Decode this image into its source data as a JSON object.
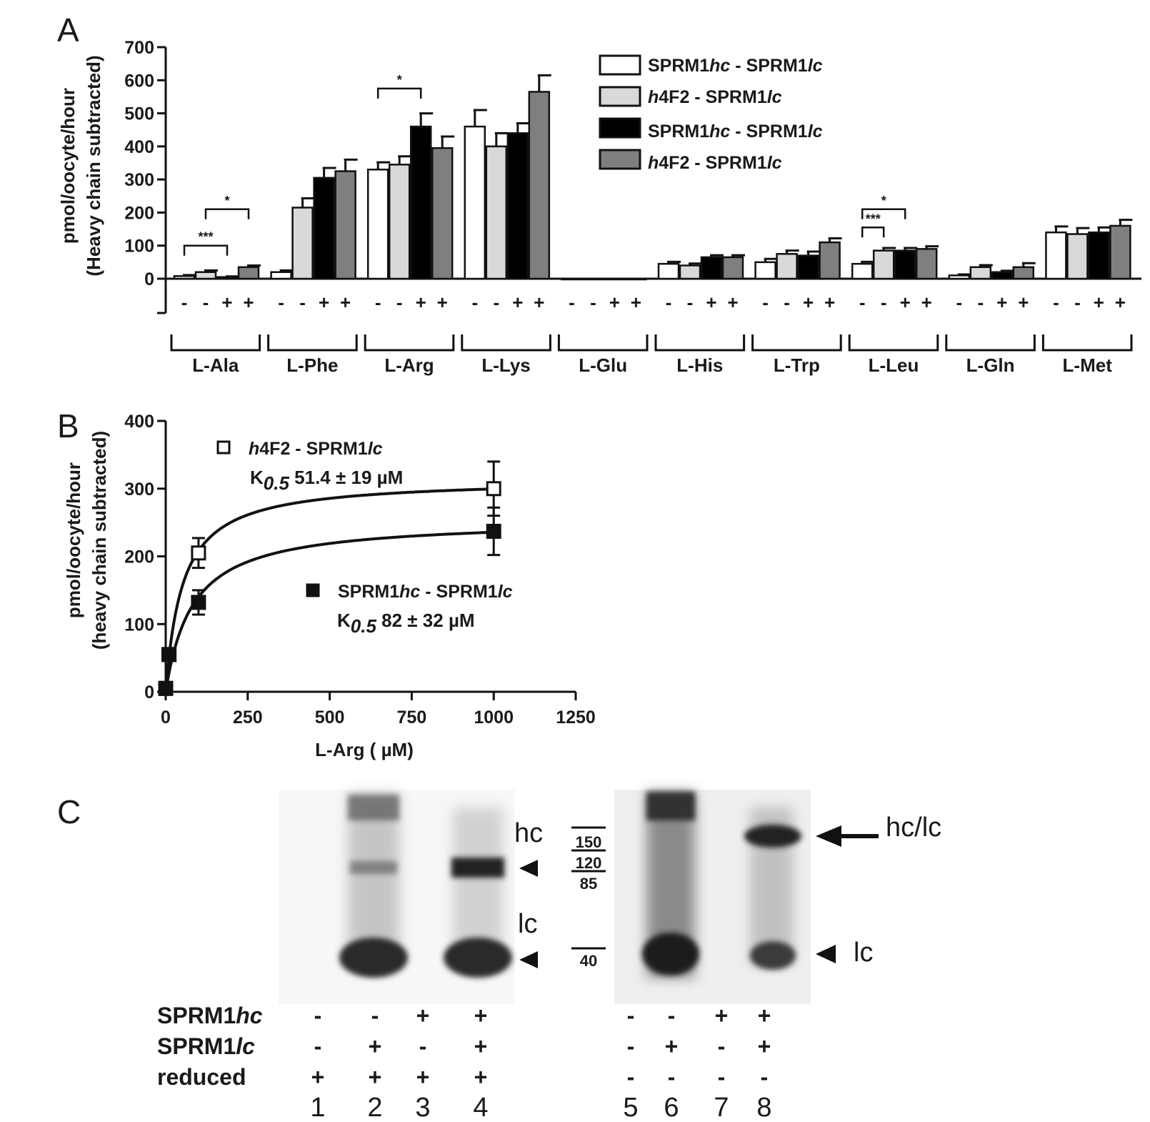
{
  "panels": {
    "a": "A",
    "b": "B",
    "c": "C"
  },
  "chart_data": [
    {
      "type": "bar",
      "panel": "A",
      "ylabel": "pmol/oocyte/hour",
      "ylabel2": "(Heavy chain subtracted)",
      "ylim": [
        0,
        700
      ],
      "yticks": [
        0,
        100,
        200,
        300,
        400,
        500,
        600,
        700
      ],
      "categories": [
        "L-Ala",
        "L-Phe",
        "L-Arg",
        "L-Lys",
        "L-Glu",
        "L-His",
        "L-Trp",
        "L-Leu",
        "L-Gln",
        "L-Met"
      ],
      "condition_labels": [
        "-",
        "-",
        "+",
        "+"
      ],
      "legend_placement": "top-right",
      "series": [
        {
          "name": "SPRM1hc - SPRM1lc",
          "legend_parts": [
            "SPRM1",
            "hc",
            " - SPRM1",
            "lc"
          ],
          "color": "#ffffff",
          "values": [
            8,
            20,
            330,
            460,
            0,
            45,
            50,
            45,
            10,
            140
          ],
          "errors": [
            3,
            5,
            22,
            50,
            0,
            6,
            10,
            6,
            3,
            18
          ]
        },
        {
          "name": "h4F2 - SPRM1lc",
          "legend_parts": [
            "h",
            "4F2 - SPRM1",
            "lc"
          ],
          "color": "#d9d9d9",
          "values": [
            20,
            215,
            345,
            400,
            0,
            40,
            75,
            85,
            35,
            135
          ],
          "errors": [
            5,
            28,
            25,
            40,
            0,
            6,
            10,
            8,
            6,
            18
          ]
        },
        {
          "name": "SPRM1hc - SPRM1lc",
          "legend_parts": [
            "SPRM1",
            "hc",
            " - SPRM1",
            "lc"
          ],
          "color": "#000000",
          "values": [
            5,
            305,
            460,
            440,
            0,
            65,
            70,
            85,
            20,
            140
          ],
          "errors": [
            2,
            30,
            40,
            30,
            0,
            6,
            12,
            8,
            4,
            15
          ]
        },
        {
          "name": "h4F2 - SPRM1lc",
          "legend_parts": [
            "h",
            "4F2 - SPRM1",
            "lc"
          ],
          "color": "#7f7f7f",
          "values": [
            35,
            325,
            395,
            565,
            0,
            65,
            110,
            90,
            35,
            160
          ],
          "errors": [
            5,
            35,
            35,
            50,
            0,
            6,
            12,
            8,
            12,
            18
          ]
        }
      ],
      "significance": [
        {
          "category": 0,
          "from": 0,
          "to": 2,
          "label": "***",
          "y": 100
        },
        {
          "category": 0,
          "from": 1,
          "to": 3,
          "label": "*",
          "y": 210
        },
        {
          "category": 2,
          "from": 0,
          "to": 2,
          "label": "*",
          "y": 575
        },
        {
          "category": 7,
          "from": 0,
          "to": 1,
          "label": "***",
          "y": 155
        },
        {
          "category": 7,
          "from": 0,
          "to": 2,
          "label": "*",
          "y": 210
        }
      ]
    },
    {
      "type": "scatter",
      "panel": "B",
      "xlabel": "L-Arg ( µM)",
      "ylabel": "pmol/oocyte/hour",
      "ylabel2": "(heavy chain subtracted)",
      "xlim": [
        0,
        1250
      ],
      "ylim": [
        0,
        400
      ],
      "xticks": [
        0,
        250,
        500,
        750,
        1000,
        1250
      ],
      "yticks": [
        0,
        100,
        200,
        300,
        400
      ],
      "series": [
        {
          "name": "h4F2 - SPRM1lc",
          "name_parts": [
            "h",
            "4F2 - SPRM1",
            "lc"
          ],
          "marker": "open-square",
          "k_label": "K",
          "k_sub": "0.5",
          "k_value": "51.4  ± 19 µM",
          "x": [
            0,
            10,
            100,
            1000
          ],
          "y": [
            5,
            55,
            205,
            300
          ],
          "err": [
            0,
            8,
            22,
            40
          ],
          "fit": {
            "vmax": 315,
            "k": 51.4
          }
        },
        {
          "name": "SPRM1hc - SPRM1lc",
          "name_parts": [
            "SPRM1",
            "hc",
            " - SPRM1",
            "lc"
          ],
          "marker": "filled-square",
          "k_label": "K",
          "k_sub": "0.5",
          "k_value": "82  ± 32 µM",
          "x": [
            0,
            10,
            100,
            1000
          ],
          "y": [
            5,
            55,
            132,
            237
          ],
          "err": [
            0,
            8,
            18,
            35
          ],
          "fit": {
            "vmax": 255,
            "k": 82
          }
        }
      ]
    }
  ],
  "gel": {
    "left_labels": {
      "hc": "hc",
      "lc": "lc"
    },
    "markers": [
      "150",
      "120",
      "85",
      "40"
    ],
    "right_labels": {
      "hclc": "hc/lc",
      "lc": "lc"
    },
    "rows": [
      {
        "label_parts": [
          "SPRM1",
          "hc"
        ],
        "values": [
          "-",
          "-",
          "+",
          "+",
          "-",
          "-",
          "+",
          "+"
        ]
      },
      {
        "label_parts": [
          "SPRM1",
          "lc"
        ],
        "values": [
          "-",
          "+",
          "-",
          "+",
          "-",
          "+",
          "-",
          "+"
        ]
      },
      {
        "label_parts": [
          "reduced",
          ""
        ],
        "values": [
          "+",
          "+",
          "+",
          "+",
          "-",
          "-",
          "-",
          "-"
        ]
      }
    ],
    "lane_numbers": [
      "1",
      "2",
      "3",
      "4",
      "5",
      "6",
      "7",
      "8"
    ]
  }
}
